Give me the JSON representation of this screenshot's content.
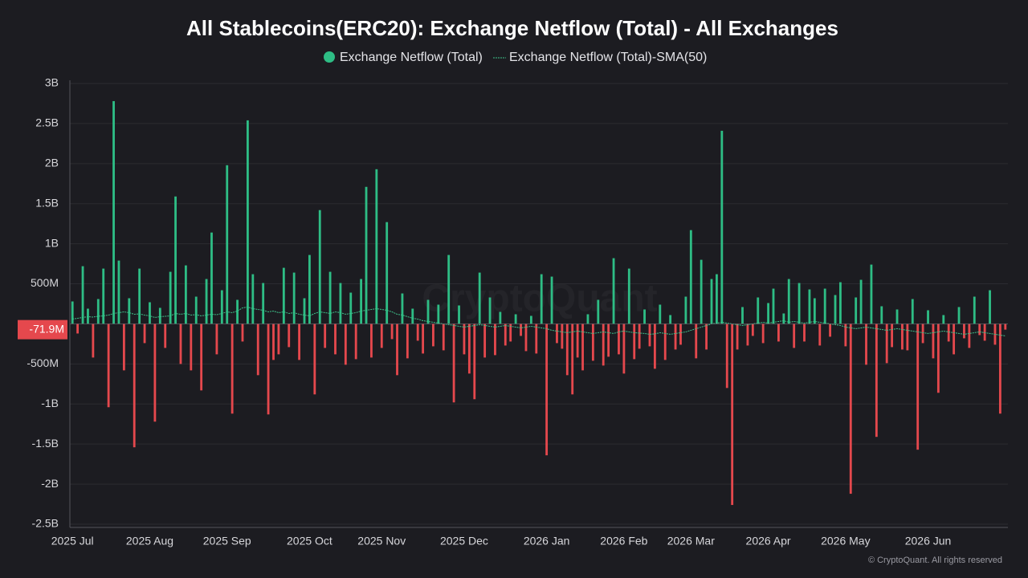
{
  "chart_data": {
    "type": "bar",
    "title": "All Stablecoins(ERC20): Exchange Netflow (Total) - All Exchanges",
    "watermark": "CryptoQuant",
    "copyright": "© CryptoQuant. All rights reserved",
    "ylim": [
      -2500000000,
      3000000000
    ],
    "yticks": [
      {
        "value": 3000000000,
        "label": "3B"
      },
      {
        "value": 2500000000,
        "label": "2.5B"
      },
      {
        "value": 2000000000,
        "label": "2B"
      },
      {
        "value": 1500000000,
        "label": "1.5B"
      },
      {
        "value": 1000000000,
        "label": "1B"
      },
      {
        "value": 500000000,
        "label": "500M"
      },
      {
        "value": -500000000,
        "label": "-500M"
      },
      {
        "value": -1000000000,
        "label": "-1B"
      },
      {
        "value": -1500000000,
        "label": "-1.5B"
      },
      {
        "value": -2000000000,
        "label": "-2B"
      },
      {
        "value": -2500000000,
        "label": "-2.5B"
      }
    ],
    "grid": true,
    "current_value": {
      "value": -71900000,
      "label": "-71.9M"
    },
    "categories": [
      "2025 Jul",
      null,
      null,
      null,
      null,
      null,
      null,
      null,
      null,
      null,
      null,
      null,
      null,
      null,
      null,
      "2025 Aug",
      null,
      null,
      null,
      null,
      null,
      null,
      null,
      null,
      null,
      null,
      null,
      null,
      null,
      null,
      "2025 Sep",
      null,
      null,
      null,
      null,
      null,
      null,
      null,
      null,
      null,
      null,
      null,
      null,
      null,
      null,
      null,
      "2025 Oct",
      null,
      null,
      null,
      null,
      null,
      null,
      null,
      null,
      null,
      null,
      null,
      null,
      null,
      "2025 Nov",
      null,
      null,
      null,
      null,
      null,
      null,
      null,
      null,
      null,
      null,
      null,
      null,
      null,
      null,
      null,
      "2025 Dec",
      null,
      null,
      null,
      null,
      null,
      null,
      null,
      null,
      null,
      null,
      null,
      null,
      null,
      null,
      null,
      "2026 Jan",
      null,
      null,
      null,
      null,
      null,
      null,
      null,
      null,
      null,
      null,
      null,
      null,
      null,
      null,
      "2026 Feb",
      null,
      null,
      null,
      null,
      null,
      null,
      null,
      null,
      null,
      null,
      null,
      null,
      "2026 Mar",
      null,
      null,
      null,
      null,
      null,
      null,
      null,
      null,
      null,
      null,
      null,
      null,
      null,
      null,
      "2026 Apr",
      null,
      null,
      null,
      null,
      null,
      null,
      null,
      null,
      null,
      null,
      null,
      null,
      null,
      null,
      "2026 May",
      null,
      null,
      null,
      null,
      null,
      null,
      null,
      null,
      null,
      null,
      null,
      null,
      null,
      null,
      null,
      "2026 Jun",
      null,
      null,
      null,
      null,
      null,
      null,
      null,
      null,
      null,
      null,
      null,
      null,
      null,
      null,
      null
    ],
    "series": [
      {
        "name": "Exchange Netflow (Total)",
        "type": "bar",
        "color": "#2ebd85",
        "negative_color": "#e5484d",
        "values": [
          280000000,
          -120000000,
          720000000,
          190000000,
          -420000000,
          310000000,
          690000000,
          -1040000000,
          2780000000,
          790000000,
          -580000000,
          320000000,
          -1540000000,
          690000000,
          -240000000,
          270000000,
          -1220000000,
          200000000,
          -300000000,
          650000000,
          1590000000,
          -500000000,
          730000000,
          -580000000,
          340000000,
          -830000000,
          560000000,
          1140000000,
          -380000000,
          420000000,
          1980000000,
          -1120000000,
          300000000,
          -220000000,
          2540000000,
          620000000,
          -640000000,
          510000000,
          -1130000000,
          -450000000,
          -380000000,
          700000000,
          -290000000,
          640000000,
          -450000000,
          320000000,
          860000000,
          -880000000,
          1420000000,
          -300000000,
          650000000,
          -380000000,
          510000000,
          -510000000,
          390000000,
          -440000000,
          560000000,
          1710000000,
          -420000000,
          1930000000,
          -300000000,
          1270000000,
          -190000000,
          -640000000,
          380000000,
          -430000000,
          190000000,
          -210000000,
          -370000000,
          300000000,
          -280000000,
          240000000,
          -330000000,
          860000000,
          -980000000,
          230000000,
          -380000000,
          -620000000,
          -940000000,
          640000000,
          -420000000,
          330000000,
          -390000000,
          150000000,
          -270000000,
          -220000000,
          120000000,
          -150000000,
          -340000000,
          100000000,
          -370000000,
          620000000,
          -1640000000,
          590000000,
          -240000000,
          -310000000,
          -640000000,
          -880000000,
          -420000000,
          -580000000,
          120000000,
          -460000000,
          300000000,
          -520000000,
          -410000000,
          820000000,
          -380000000,
          -620000000,
          690000000,
          -440000000,
          -310000000,
          180000000,
          -280000000,
          -560000000,
          240000000,
          -450000000,
          110000000,
          -320000000,
          -260000000,
          340000000,
          1170000000,
          -430000000,
          800000000,
          -320000000,
          560000000,
          620000000,
          2410000000,
          -800000000,
          -2260000000,
          -320000000,
          210000000,
          -270000000,
          -150000000,
          330000000,
          -240000000,
          260000000,
          440000000,
          -220000000,
          130000000,
          560000000,
          -300000000,
          510000000,
          -220000000,
          430000000,
          320000000,
          -270000000,
          440000000,
          -160000000,
          360000000,
          520000000,
          -280000000,
          -2120000000,
          330000000,
          550000000,
          -510000000,
          740000000,
          -1410000000,
          220000000,
          -490000000,
          -290000000,
          180000000,
          -320000000,
          -330000000,
          310000000,
          -1570000000,
          -240000000,
          170000000,
          -430000000,
          -860000000,
          110000000,
          -220000000,
          -380000000,
          210000000,
          -180000000,
          -300000000,
          340000000,
          -140000000,
          -210000000,
          420000000,
          -260000000,
          -1120000000,
          -71900000
        ]
      },
      {
        "name": "Exchange Netflow (Total)-SMA(50)",
        "type": "line",
        "color": "#3ec48c",
        "values": [
          60000000,
          70000000,
          80000000,
          90000000,
          85000000,
          95000000,
          100000000,
          110000000,
          130000000,
          140000000,
          150000000,
          140000000,
          120000000,
          125000000,
          110000000,
          100000000,
          80000000,
          90000000,
          95000000,
          100000000,
          130000000,
          120000000,
          130000000,
          110000000,
          115000000,
          100000000,
          110000000,
          120000000,
          115000000,
          130000000,
          150000000,
          140000000,
          160000000,
          200000000,
          210000000,
          190000000,
          180000000,
          170000000,
          150000000,
          160000000,
          140000000,
          150000000,
          130000000,
          140000000,
          120000000,
          110000000,
          100000000,
          130000000,
          150000000,
          140000000,
          130000000,
          150000000,
          140000000,
          120000000,
          130000000,
          140000000,
          160000000,
          170000000,
          180000000,
          190000000,
          180000000,
          170000000,
          150000000,
          120000000,
          110000000,
          90000000,
          70000000,
          60000000,
          40000000,
          30000000,
          20000000,
          10000000,
          0,
          -10000000,
          -20000000,
          -30000000,
          -40000000,
          -30000000,
          -20000000,
          -10000000,
          -20000000,
          -30000000,
          -40000000,
          -30000000,
          -20000000,
          -30000000,
          -40000000,
          -50000000,
          -40000000,
          -30000000,
          -40000000,
          -50000000,
          -60000000,
          -80000000,
          -90000000,
          -100000000,
          -110000000,
          -100000000,
          -90000000,
          -100000000,
          -110000000,
          -120000000,
          -110000000,
          -100000000,
          -110000000,
          -120000000,
          -100000000,
          -90000000,
          -100000000,
          -110000000,
          -115000000,
          -120000000,
          -130000000,
          -125000000,
          -110000000,
          -120000000,
          -130000000,
          -120000000,
          -110000000,
          -100000000,
          -80000000,
          -60000000,
          -40000000,
          -20000000,
          0,
          10000000,
          20000000,
          10000000,
          0,
          -10000000,
          -20000000,
          -10000000,
          0,
          10000000,
          20000000,
          10000000,
          20000000,
          30000000,
          40000000,
          20000000,
          30000000,
          20000000,
          10000000,
          20000000,
          30000000,
          20000000,
          10000000,
          0,
          -10000000,
          -20000000,
          -40000000,
          -50000000,
          -60000000,
          -50000000,
          -40000000,
          -50000000,
          -60000000,
          -70000000,
          -80000000,
          -70000000,
          -60000000,
          -70000000,
          -80000000,
          -90000000,
          -100000000,
          -110000000,
          -120000000,
          -110000000,
          -100000000,
          -90000000,
          -100000000,
          -110000000,
          -120000000,
          -130000000,
          -120000000,
          -110000000,
          -100000000,
          -110000000,
          -120000000,
          -130000000,
          -140000000,
          -150000000
        ]
      }
    ]
  }
}
